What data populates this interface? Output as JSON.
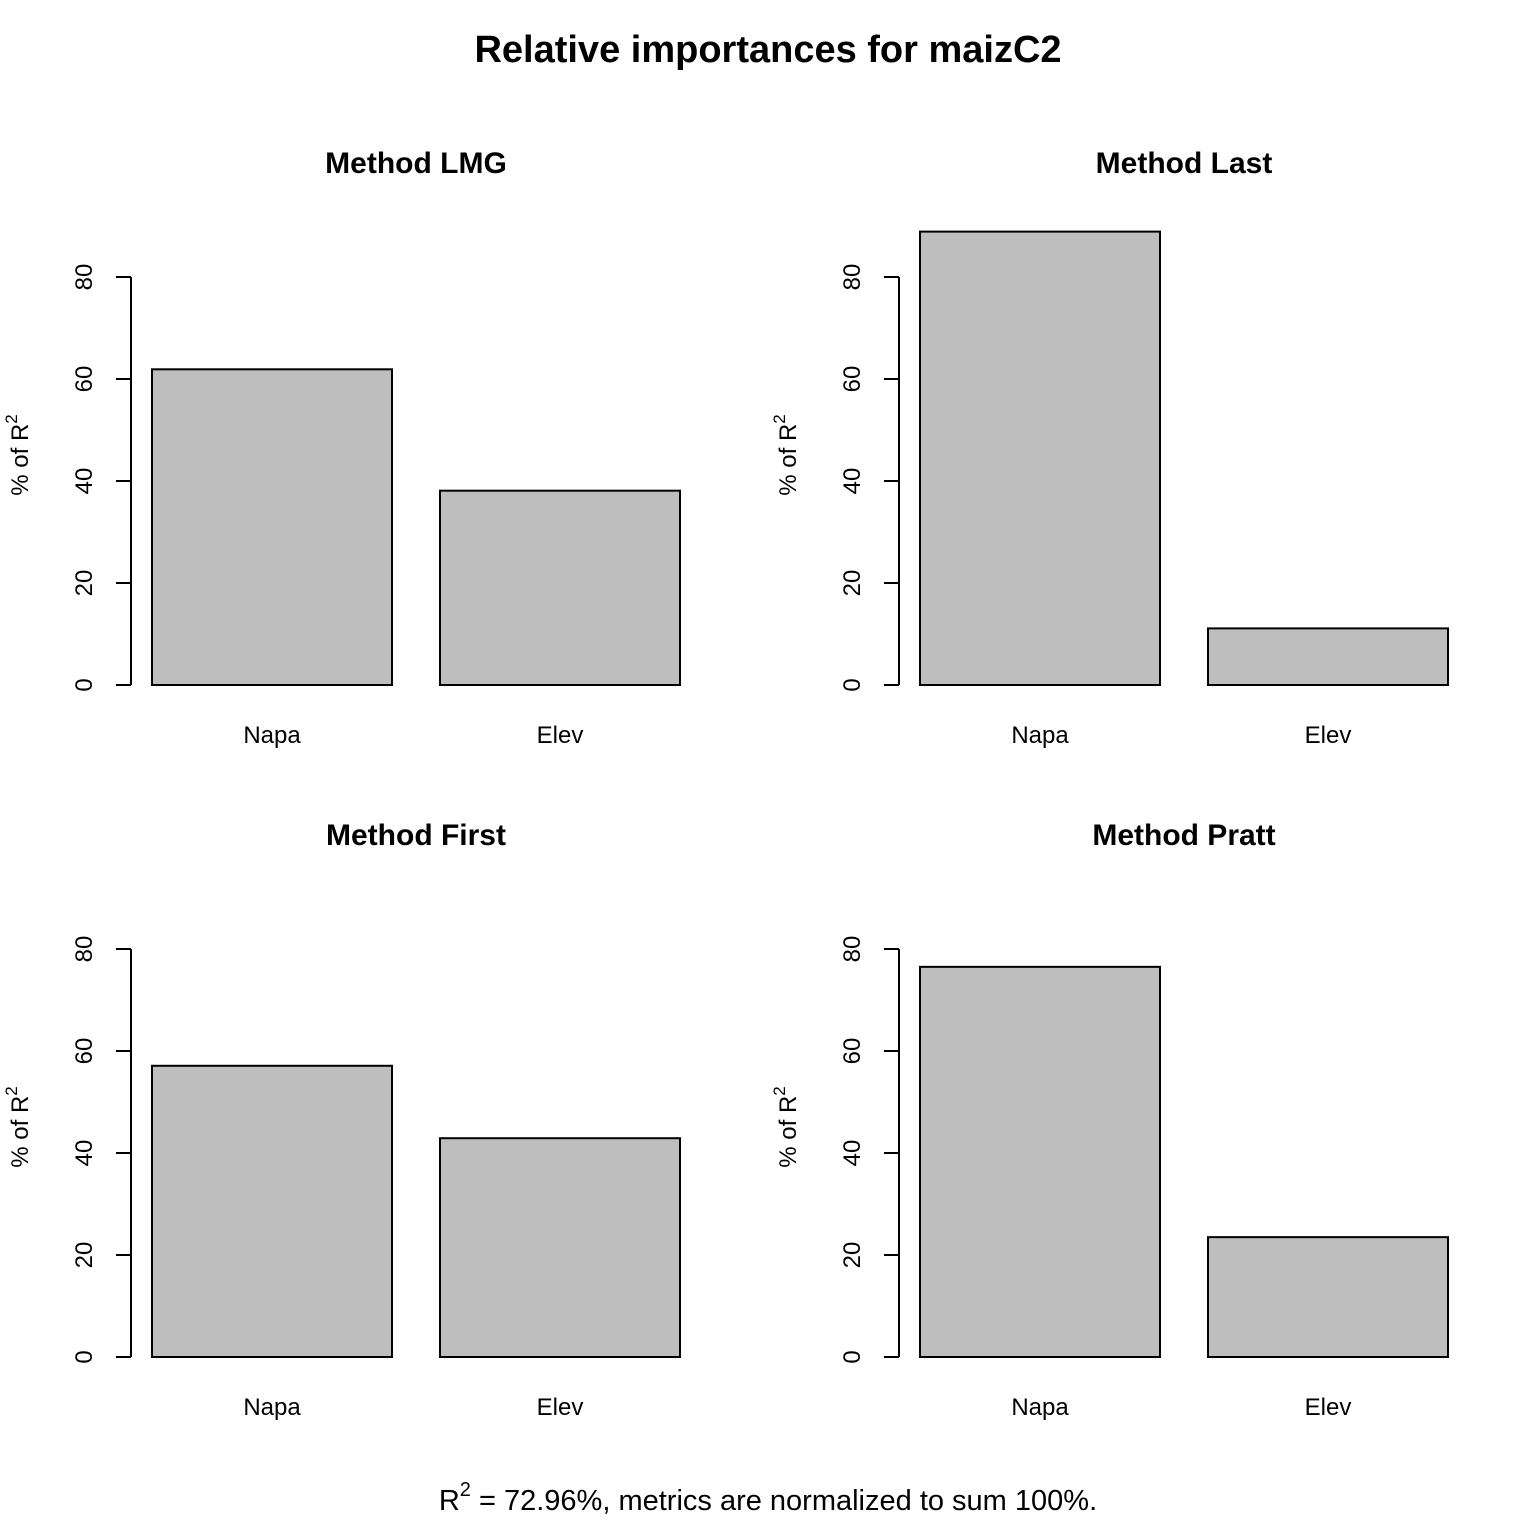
{
  "figure": {
    "title": "Relative importances for maizC2",
    "footer": {
      "prefix": "R",
      "superscript": "2",
      "text": " = 72.96%, metrics are normalized to sum 100%."
    }
  },
  "colors": {
    "bar_fill": "#bebebe",
    "bar_stroke": "#000000",
    "axis": "#000000",
    "background": "#ffffff"
  },
  "chart_data": [
    {
      "type": "bar",
      "title": "Method LMG",
      "ylabel": "% of R",
      "ylabel_superscript": "2",
      "categories": [
        "Napa",
        "Elev"
      ],
      "values": [
        61.9,
        38.1
      ],
      "ylim": [
        0,
        80
      ],
      "yticks": [
        0,
        20,
        40,
        60,
        80
      ]
    },
    {
      "type": "bar",
      "title": "Method Last",
      "ylabel": "% of R",
      "ylabel_superscript": "2",
      "categories": [
        "Napa",
        "Elev"
      ],
      "values": [
        88.9,
        11.1
      ],
      "ylim": [
        0,
        80
      ],
      "yticks": [
        0,
        20,
        40,
        60,
        80
      ]
    },
    {
      "type": "bar",
      "title": "Method First",
      "ylabel": "% of R",
      "ylabel_superscript": "2",
      "categories": [
        "Napa",
        "Elev"
      ],
      "values": [
        57.1,
        42.9
      ],
      "ylim": [
        0,
        80
      ],
      "yticks": [
        0,
        20,
        40,
        60,
        80
      ]
    },
    {
      "type": "bar",
      "title": "Method Pratt",
      "ylabel": "% of R",
      "ylabel_superscript": "2",
      "categories": [
        "Napa",
        "Elev"
      ],
      "values": [
        76.5,
        23.5
      ],
      "ylim": [
        0,
        80
      ],
      "yticks": [
        0,
        20,
        40,
        60,
        80
      ]
    }
  ]
}
